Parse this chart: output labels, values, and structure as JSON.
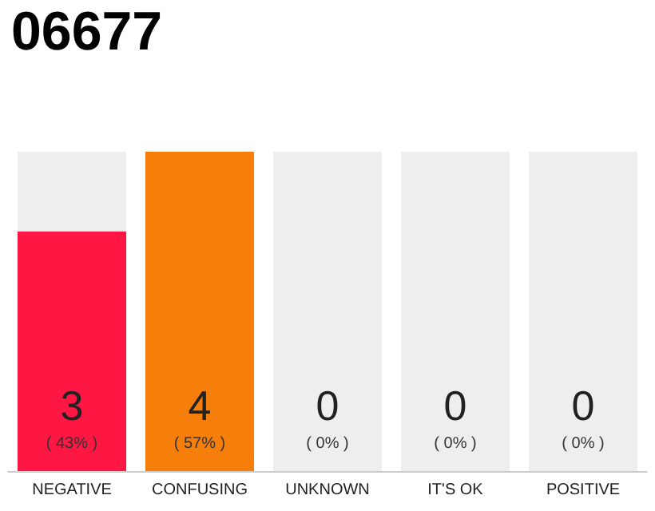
{
  "chart_data": {
    "type": "bar",
    "title": "06677",
    "categories": [
      "NEGATIVE",
      "CONFUSING",
      "UNKNOWN",
      "IT'S OK",
      "POSITIVE"
    ],
    "values": [
      3,
      4,
      0,
      0,
      0
    ],
    "colors": [
      "#ff1744",
      "#f57f0a",
      "#eeeeee",
      "#eeeeee",
      "#eeeeee"
    ],
    "value_labels": [
      "3\n( 43% )",
      "4\n( 57% )",
      "0\n( 0% )",
      "0\n( 0% )",
      "0\n( 0% )"
    ],
    "grid": false
  }
}
